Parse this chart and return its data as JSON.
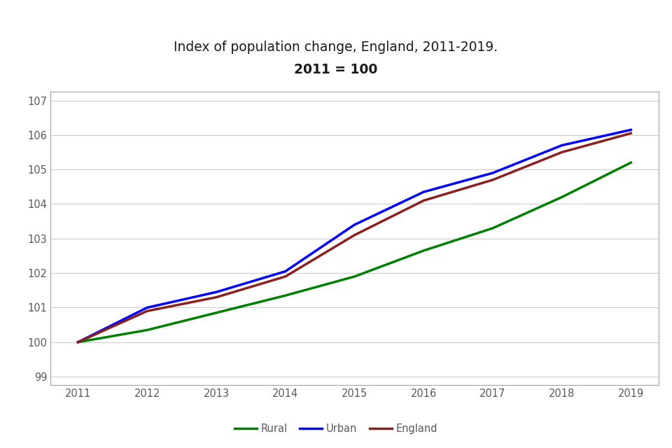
{
  "title_line1": "Index of population change, England, 2011-2019.",
  "title_line2": "2011 = 100",
  "years": [
    2011,
    2012,
    2013,
    2014,
    2015,
    2016,
    2017,
    2018,
    2019
  ],
  "rural": [
    100.0,
    100.35,
    100.85,
    101.35,
    101.9,
    102.65,
    103.3,
    104.2,
    105.2
  ],
  "urban": [
    100.0,
    101.0,
    101.45,
    102.05,
    103.4,
    104.35,
    104.9,
    105.7,
    106.15
  ],
  "england": [
    100.0,
    100.9,
    101.3,
    101.9,
    103.1,
    104.1,
    104.7,
    105.5,
    106.05
  ],
  "rural_color": "#008000",
  "urban_color": "#0000FF",
  "england_color": "#8B2020",
  "ylim": [
    98.75,
    107.25
  ],
  "yticks": [
    99,
    100,
    101,
    102,
    103,
    104,
    105,
    106,
    107
  ],
  "xticks": [
    2011,
    2012,
    2013,
    2014,
    2015,
    2016,
    2017,
    2018,
    2019
  ],
  "linewidth": 2.5,
  "grid_color": "#cccccc",
  "background_color": "#ffffff",
  "border_color": "#aaaaaa",
  "tick_label_color": "#595959",
  "title_color": "#1a1a1a",
  "legend_labels": [
    "Rural",
    "Urban",
    "England"
  ],
  "title_fontsize": 13.5,
  "tick_fontsize": 10.5,
  "legend_fontsize": 10.5
}
